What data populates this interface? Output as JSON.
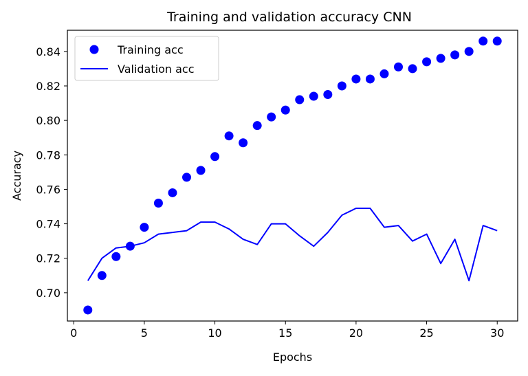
{
  "chart_data": {
    "type": "line",
    "title": "Training and validation accuracy CNN",
    "xlabel": "Epochs",
    "ylabel": "Accuracy",
    "xlim": [
      -0.45,
      31.45
    ],
    "ylim": [
      0.6836,
      0.8523
    ],
    "x_ticks": [
      0,
      5,
      10,
      15,
      20,
      25,
      30
    ],
    "x_tick_labels": [
      "0",
      "5",
      "10",
      "15",
      "20",
      "25",
      "30"
    ],
    "y_ticks": [
      0.7,
      0.72,
      0.74,
      0.76,
      0.78,
      0.8,
      0.82,
      0.84
    ],
    "y_tick_labels": [
      "0.70",
      "0.72",
      "0.74",
      "0.76",
      "0.78",
      "0.80",
      "0.82",
      "0.84"
    ],
    "legend_position": "top-left",
    "grid": false,
    "x": [
      1,
      2,
      3,
      4,
      5,
      6,
      7,
      8,
      9,
      10,
      11,
      12,
      13,
      14,
      15,
      16,
      17,
      18,
      19,
      20,
      21,
      22,
      23,
      24,
      25,
      26,
      27,
      28,
      29,
      30
    ],
    "series": [
      {
        "name": "Training acc",
        "style": "markers",
        "color": "#0000ff",
        "values": [
          0.69,
          0.71,
          0.721,
          0.727,
          0.738,
          0.752,
          0.758,
          0.767,
          0.771,
          0.779,
          0.791,
          0.787,
          0.797,
          0.802,
          0.806,
          0.812,
          0.814,
          0.815,
          0.82,
          0.824,
          0.824,
          0.827,
          0.831,
          0.83,
          0.834,
          0.836,
          0.838,
          0.84,
          0.846,
          0.846
        ]
      },
      {
        "name": "Validation acc",
        "style": "line",
        "color": "#0000ff",
        "values": [
          0.707,
          0.72,
          0.726,
          0.727,
          0.729,
          0.734,
          0.735,
          0.736,
          0.741,
          0.741,
          0.737,
          0.731,
          0.728,
          0.74,
          0.74,
          0.733,
          0.727,
          0.735,
          0.745,
          0.749,
          0.749,
          0.738,
          0.739,
          0.73,
          0.734,
          0.717,
          0.731,
          0.707,
          0.739,
          0.736
        ]
      }
    ]
  }
}
